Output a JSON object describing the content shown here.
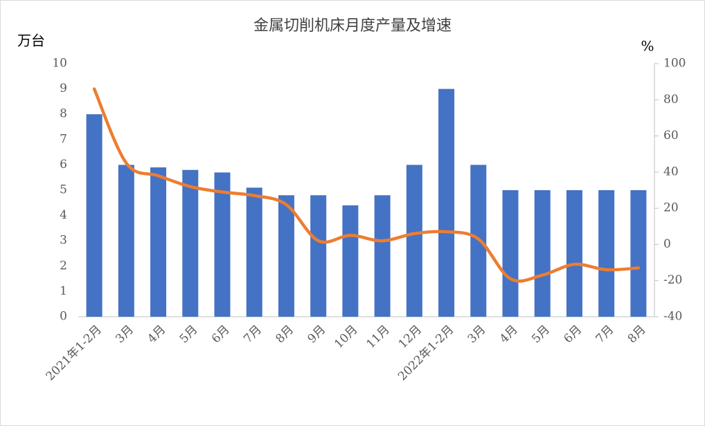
{
  "chart_data": {
    "type": "bar_line",
    "title": "金属切削机床月度产量及增速",
    "y_label": "万台",
    "y2_label": "%",
    "categories": [
      "2021年1-2月",
      "3月",
      "4月",
      "5月",
      "6月",
      "7月",
      "8月",
      "9月",
      "10月",
      "11月",
      "12月",
      "2022年1-2月",
      "3月",
      "4月",
      "5月",
      "6月",
      "7月",
      "8月"
    ],
    "series": [
      {
        "type": "bar",
        "color": "#4472c4",
        "values": [
          8,
          6,
          5.9,
          5.8,
          5.7,
          5.1,
          4.8,
          4.8,
          4.4,
          4.8,
          6,
          9,
          6,
          5,
          5,
          5,
          5,
          5
        ]
      },
      {
        "type": "line",
        "axis": "y2",
        "color": "#ed7d31",
        "values": [
          86,
          45,
          38,
          32,
          29,
          27,
          22,
          2,
          5,
          2,
          6,
          7,
          3,
          -19,
          -17,
          -11,
          -14,
          -13
        ]
      }
    ],
    "ylim": [
      0,
      10
    ],
    "yticks": [
      0,
      1,
      2,
      3,
      4,
      5,
      6,
      7,
      8,
      9,
      10
    ],
    "y2lim": [
      -40,
      100
    ],
    "y2ticks": [
      -40,
      -20,
      0,
      20,
      40,
      60,
      80,
      100
    ],
    "grid": false
  }
}
